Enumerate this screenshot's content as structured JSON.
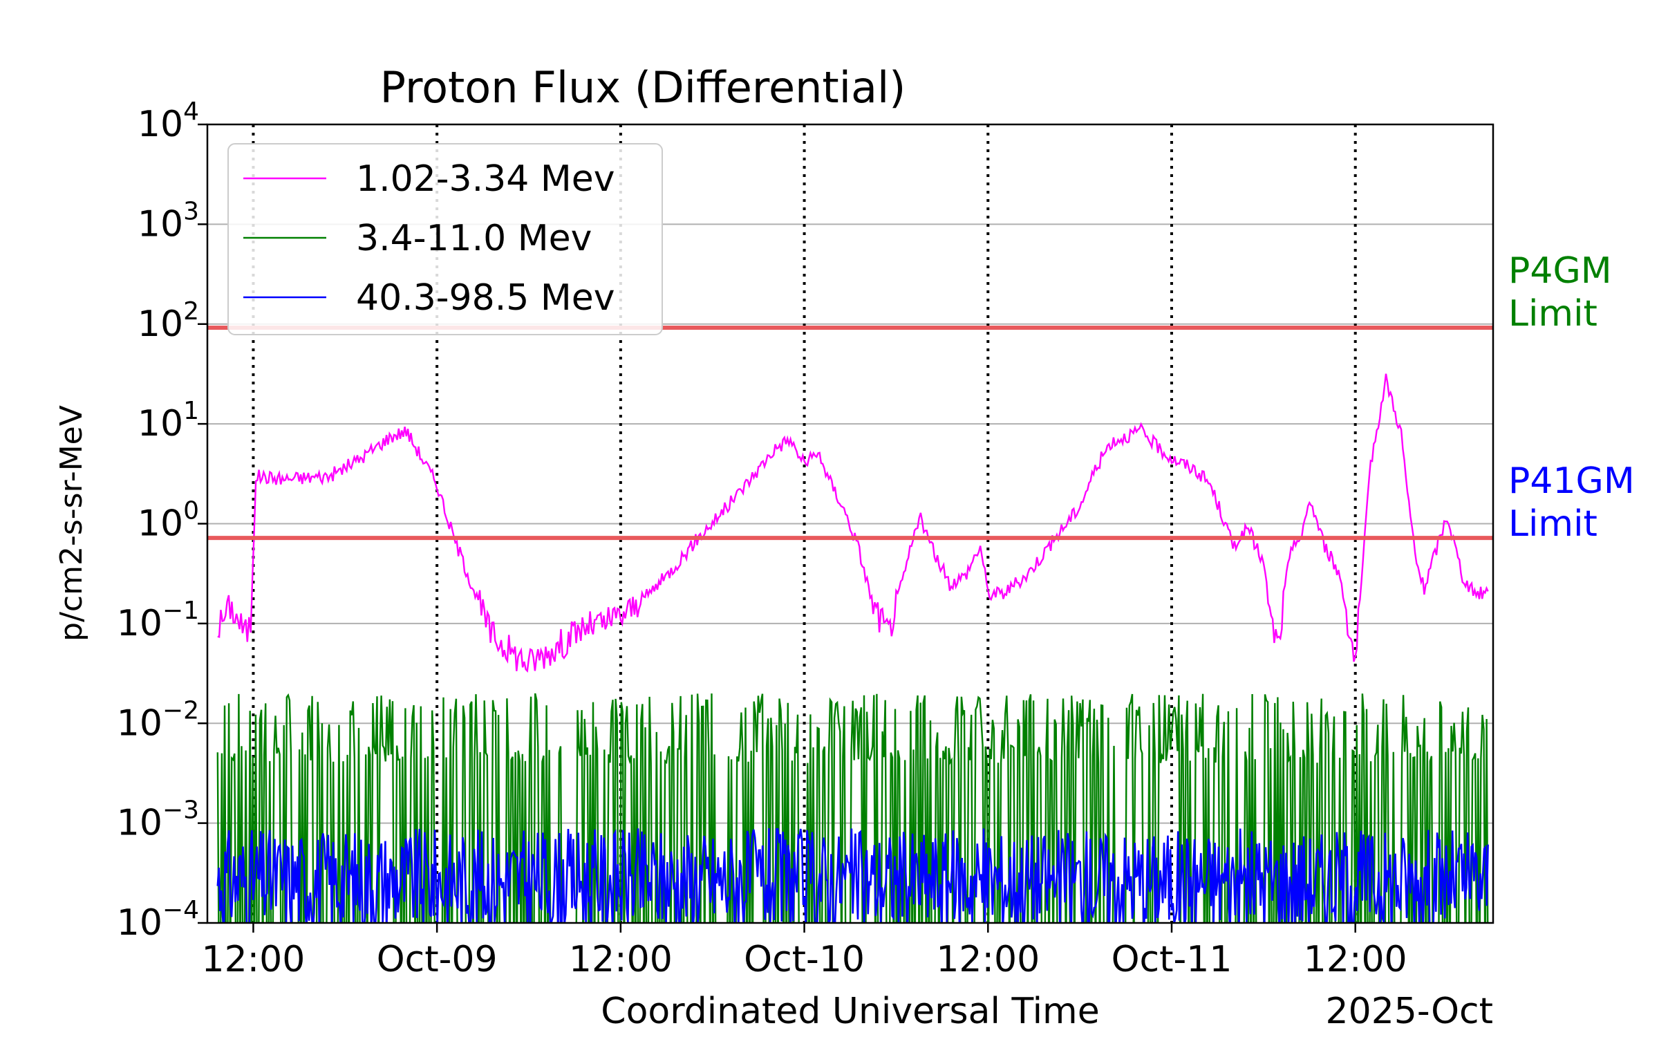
{
  "chart_data": {
    "type": "line",
    "title": "Proton Flux (Differential)",
    "xlabel": "Coordinated Universal Time",
    "ylabel": "p/cm2-s-sr-MeV",
    "x_offset_label": "2025-Oct",
    "yscale": "log",
    "ylim": [
      0.0001,
      10000
    ],
    "xlim": [
      "2025-10-08T09:00",
      "2025-10-11T21:00"
    ],
    "grid": "horizontal",
    "legend_position": "top-left",
    "y_ticks": [
      {
        "value": 0.0001,
        "base": "10",
        "exp": "−4"
      },
      {
        "value": 0.001,
        "base": "10",
        "exp": "−3"
      },
      {
        "value": 0.01,
        "base": "10",
        "exp": "−2"
      },
      {
        "value": 0.1,
        "base": "10",
        "exp": "−1"
      },
      {
        "value": 1,
        "base": "10",
        "exp": "0"
      },
      {
        "value": 10,
        "base": "10",
        "exp": "1"
      },
      {
        "value": 100,
        "base": "10",
        "exp": "2"
      },
      {
        "value": 1000,
        "base": "10",
        "exp": "3"
      },
      {
        "value": 10000,
        "base": "10",
        "exp": "4"
      }
    ],
    "x_ticks": [
      {
        "time": "2025-10-08T12:00",
        "label": "12:00"
      },
      {
        "time": "2025-10-09T00:00",
        "label": "Oct-09"
      },
      {
        "time": "2025-10-09T12:00",
        "label": "12:00"
      },
      {
        "time": "2025-10-10T00:00",
        "label": "Oct-10"
      },
      {
        "time": "2025-10-10T12:00",
        "label": "12:00"
      },
      {
        "time": "2025-10-11T00:00",
        "label": "Oct-11"
      },
      {
        "time": "2025-10-11T12:00",
        "label": "12:00"
      }
    ],
    "thresholds": [
      {
        "name": "P4GM Limit",
        "lines": [
          "P4GM",
          "Limit"
        ],
        "value": 92,
        "color": "#e8595c",
        "label_color": "#008000"
      },
      {
        "name": "P41GM Limit",
        "lines": [
          "P41GM",
          "Limit"
        ],
        "value": 0.72,
        "color": "#e8595c",
        "label_color": "#0000ff"
      }
    ],
    "series": [
      {
        "name": "1.02-3.34 Mev",
        "color": "#ff00ff",
        "time_range": [
          "2025-10-08T09:40",
          "2025-10-11T20:40"
        ],
        "x": [
          "2025-10-08T09:40",
          "2025-10-08T10:30",
          "2025-10-08T11:30",
          "2025-10-08T11:50",
          "2025-10-08T12:10",
          "2025-10-08T14:00",
          "2025-10-08T17:00",
          "2025-10-08T19:00",
          "2025-10-08T21:00",
          "2025-10-08T22:00",
          "2025-10-09T00:00",
          "2025-10-09T01:00",
          "2025-10-09T02:30",
          "2025-10-09T03:30",
          "2025-10-09T05:00",
          "2025-10-09T06:00",
          "2025-10-09T07:00",
          "2025-10-09T08:00",
          "2025-10-09T09:30",
          "2025-10-09T11:00",
          "2025-10-09T12:00",
          "2025-10-09T13:00",
          "2025-10-09T15:00",
          "2025-10-09T17:00",
          "2025-10-09T19:00",
          "2025-10-09T21:00",
          "2025-10-09T22:00",
          "2025-10-09T23:00",
          "2025-10-10T00:00",
          "2025-10-10T01:00",
          "2025-10-10T01:30",
          "2025-10-10T02:30",
          "2025-10-10T03:30",
          "2025-10-10T04:30",
          "2025-10-10T05:30",
          "2025-10-10T06:30",
          "2025-10-10T07:30",
          "2025-10-10T08:30",
          "2025-10-10T09:30",
          "2025-10-10T10:30",
          "2025-10-10T11:30",
          "2025-10-10T12:00",
          "2025-10-10T13:00",
          "2025-10-10T14:30",
          "2025-10-10T16:00",
          "2025-10-10T18:00",
          "2025-10-10T19:00",
          "2025-10-10T20:00",
          "2025-10-10T21:00",
          "2025-10-10T22:00",
          "2025-10-10T23:00",
          "2025-10-11T00:00",
          "2025-10-11T01:30",
          "2025-10-11T02:30",
          "2025-10-11T03:30",
          "2025-10-11T04:00",
          "2025-10-11T05:00",
          "2025-10-11T06:00",
          "2025-10-11T06:30",
          "2025-10-11T07:00",
          "2025-10-11T07:30",
          "2025-10-11T08:00",
          "2025-10-11T08:30",
          "2025-10-11T09:00",
          "2025-10-11T10:00",
          "2025-10-11T11:00",
          "2025-10-11T12:00",
          "2025-10-11T13:00",
          "2025-10-11T14:00",
          "2025-10-11T14:30",
          "2025-10-11T15:00",
          "2025-10-11T15:30",
          "2025-10-11T16:00",
          "2025-10-11T16:30",
          "2025-10-11T17:00",
          "2025-10-11T17:30",
          "2025-10-11T18:00",
          "2025-10-11T18:30",
          "2025-10-11T19:00",
          "2025-10-11T19:30",
          "2025-10-11T20:00",
          "2025-10-11T20:40"
        ],
        "values": [
          0.09,
          0.15,
          0.08,
          0.1,
          3.0,
          2.8,
          3.0,
          4.5,
          7.5,
          8.5,
          2.5,
          0.8,
          0.2,
          0.08,
          0.05,
          0.04,
          0.05,
          0.06,
          0.09,
          0.1,
          0.12,
          0.15,
          0.3,
          0.7,
          1.5,
          3.5,
          5.5,
          7.0,
          4.0,
          5.0,
          3.0,
          1.5,
          0.6,
          0.15,
          0.08,
          0.3,
          1.2,
          0.5,
          0.25,
          0.3,
          0.6,
          0.2,
          0.2,
          0.3,
          0.6,
          1.5,
          3.5,
          6.5,
          7.5,
          8.5,
          6.0,
          4.5,
          3.5,
          2.5,
          1.0,
          0.6,
          0.9,
          0.4,
          0.1,
          0.06,
          0.3,
          0.7,
          0.7,
          1.8,
          0.6,
          0.3,
          0.04,
          4.0,
          28.0,
          15.0,
          8.0,
          1.5,
          0.4,
          0.22,
          0.4,
          0.7,
          1.2,
          0.6,
          0.3,
          0.22,
          0.2,
          0.21
        ]
      },
      {
        "name": "3.4-11.0 Mev",
        "color": "#008000",
        "time_range": [
          "2025-10-08T09:40",
          "2025-10-11T20:40"
        ],
        "x": [
          "2025-10-08T09:40",
          "2025-10-11T20:40"
        ],
        "typical_range": [
          0.004,
          0.02
        ],
        "values": [
          0.009,
          0.012
        ]
      },
      {
        "name": "40.3-98.5 Mev",
        "color": "#0000ff",
        "time_range": [
          "2025-10-08T09:40",
          "2025-10-11T20:40"
        ],
        "x": [
          "2025-10-08T09:40",
          "2025-10-11T20:40"
        ],
        "typical_range": [
          0.0001,
          0.0009
        ],
        "values": [
          0.0004,
          0.0008
        ]
      }
    ]
  }
}
